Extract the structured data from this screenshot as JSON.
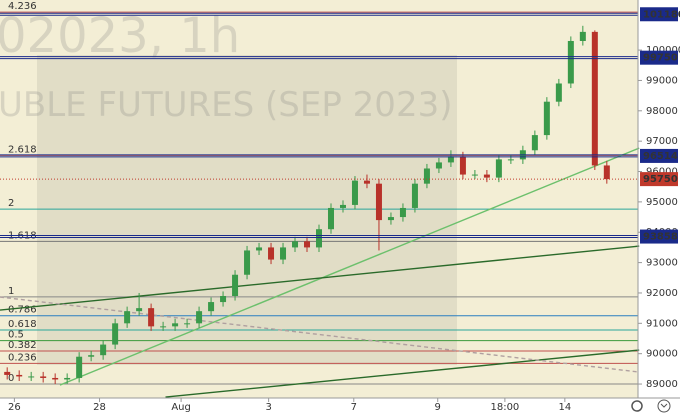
{
  "chart_data": {
    "type": "candlestick",
    "watermark": [
      "02023, 1h",
      "UBLE FUTURES (SEP 2023)"
    ],
    "open": [
      89400,
      89300,
      89250,
      89250,
      89200,
      89150,
      89200,
      89900,
      89950,
      90300,
      91000,
      91400,
      91500,
      90900,
      90900,
      91000,
      91000,
      91400,
      91700,
      91900,
      92600,
      93400,
      93500,
      93100,
      93500,
      93700,
      93500,
      94100,
      94800,
      94900,
      95700,
      95600,
      94400,
      94500,
      94800,
      95600,
      96100,
      96300,
      96500,
      95900,
      95900,
      95800,
      96400,
      96400,
      96700,
      97200,
      98300,
      98900,
      100300,
      100600,
      96200
    ],
    "high": [
      89550,
      89450,
      89400,
      89400,
      89350,
      89350,
      90050,
      90100,
      90450,
      91150,
      91550,
      92000,
      91650,
      91050,
      91150,
      91150,
      91550,
      91850,
      92050,
      92750,
      93550,
      93650,
      93650,
      93650,
      93850,
      93850,
      94250,
      94950,
      95050,
      95850,
      95900,
      95750,
      94650,
      94950,
      95750,
      96250,
      96450,
      96700,
      96650,
      96050,
      96050,
      96550,
      96550,
      96850,
      97350,
      98450,
      99050,
      100450,
      100800,
      100650,
      96350
    ],
    "low": [
      89150,
      89100,
      89100,
      89050,
      89000,
      89000,
      89050,
      89750,
      89800,
      90150,
      90850,
      91250,
      90750,
      90750,
      90750,
      90850,
      90850,
      91250,
      91550,
      91750,
      92450,
      93250,
      92950,
      92950,
      93350,
      93350,
      93350,
      93950,
      94650,
      94750,
      95450,
      93400,
      94250,
      94350,
      94650,
      95450,
      95950,
      96150,
      95750,
      95750,
      95650,
      95650,
      96250,
      96250,
      96550,
      97050,
      98150,
      98750,
      100150,
      96050,
      95600
    ],
    "close": [
      89300,
      89250,
      89250,
      89200,
      89150,
      89200,
      89900,
      89950,
      90300,
      91000,
      91400,
      91500,
      90900,
      90900,
      91000,
      91000,
      91400,
      91700,
      91900,
      92600,
      93400,
      93500,
      93100,
      93500,
      93700,
      93500,
      94100,
      94800,
      94900,
      95700,
      95600,
      94400,
      94500,
      94800,
      95600,
      96100,
      96300,
      96500,
      95900,
      95900,
      95800,
      96400,
      96400,
      96700,
      97200,
      98300,
      98900,
      100300,
      100600,
      96200,
      95750
    ],
    "up_color": "#3a9a4a",
    "down_color": "#b8322a",
    "xlim": [
      -0.6,
      52.6
    ],
    "xticks": [
      {
        "value": 0.6,
        "label": "26"
      },
      {
        "value": 7.7,
        "label": "28"
      },
      {
        "value": 14.5,
        "label": "Aug"
      },
      {
        "value": 21.8,
        "label": "3"
      },
      {
        "value": 28.9,
        "label": "7"
      },
      {
        "value": 35.9,
        "label": "9"
      },
      {
        "value": 41.5,
        "label": "18:00"
      },
      {
        "value": 46.5,
        "label": "14"
      }
    ],
    "ylim": [
      88540,
      101650
    ],
    "yticks": [
      89000,
      90000,
      91000,
      92000,
      93000,
      94000,
      95000,
      96000,
      97000,
      98000,
      99000,
      100000
    ],
    "fib": [
      {
        "ratio": 4.236,
        "price": 101250,
        "color": "#c0504d"
      },
      {
        "ratio": 2.618,
        "price": 96530,
        "color": "#c0504d"
      },
      {
        "ratio": 2,
        "price": 94760,
        "color": "#2aa69a"
      },
      {
        "ratio": 1.618,
        "price": 93700,
        "color": "#777777"
      },
      {
        "ratio": 1,
        "price": 91870,
        "color": "#888888"
      },
      {
        "ratio": 0.786,
        "price": 91250,
        "color": "#2a7fc0"
      },
      {
        "ratio": 0.618,
        "price": 90780,
        "color": "#2aa69a"
      },
      {
        "ratio": 0.5,
        "price": 90430,
        "color": "#3a9a3a"
      },
      {
        "ratio": 0.382,
        "price": 90090,
        "color": "#c0504d"
      },
      {
        "ratio": 0.236,
        "price": 89680,
        "color": "#c0504d"
      },
      {
        "ratio": 0,
        "price": 89000,
        "color": "#888888"
      }
    ],
    "price_levels": [
      101180,
      99750,
      96514,
      93858
    ],
    "level_color": "#1a2a8a",
    "last_price": 95750,
    "last_price_color": "#c0392b",
    "trendlines": [
      {
        "x": [
          4.4,
          52.7
        ],
        "y": [
          88966,
          96772
        ],
        "color": "#6cc06c"
      },
      {
        "x": [
          -0.6,
          52.7
        ],
        "y": [
          91436,
          93544
        ],
        "color": "#2a6a2a"
      },
      {
        "x": [
          13.2,
          52.7
        ],
        "y": [
          88570,
          90119
        ],
        "color": "#2a6a2a"
      },
      {
        "x": [
          -0.6,
          52.7
        ],
        "y": [
          91866,
          89394
        ],
        "color": "#b0a0a0"
      }
    ]
  }
}
